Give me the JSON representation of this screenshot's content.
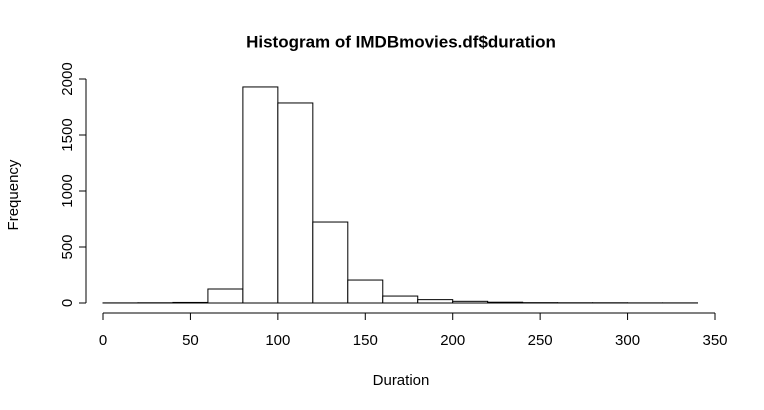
{
  "chart_data": {
    "type": "histogram",
    "title": "Histogram of IMDBmovies.df$duration",
    "xlabel": "Duration",
    "ylabel": "Frequency",
    "bins": [
      0,
      20,
      40,
      60,
      80,
      100,
      120,
      140,
      160,
      180,
      200,
      220,
      240,
      260,
      280,
      300,
      320,
      340
    ],
    "values": [
      1,
      2,
      5,
      125,
      1929,
      1786,
      723,
      205,
      62,
      30,
      15,
      7,
      3,
      2,
      2,
      1,
      1
    ],
    "color": "#ffffff",
    "xlim": [
      0,
      350
    ],
    "xticks": [
      0,
      50,
      100,
      150,
      200,
      250,
      300,
      350
    ],
    "ylim": [
      0,
      2000
    ],
    "yticks": [
      0,
      500,
      1000,
      1500,
      2000
    ]
  }
}
